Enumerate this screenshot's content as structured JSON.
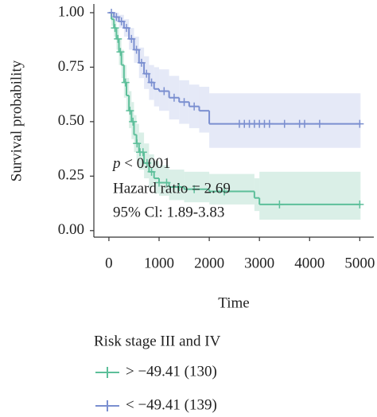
{
  "chart_data": {
    "type": "survival",
    "x_label": "Time",
    "y_label": "Survival probability",
    "xlim": [
      -300,
      5280
    ],
    "ylim": [
      -0.03,
      1.04
    ],
    "xticks": [
      0,
      1000,
      2000,
      3000,
      4000,
      5000
    ],
    "yticks": [
      {
        "value": 0,
        "label": "0.00"
      },
      {
        "value": 0.25,
        "label": "0.25"
      },
      {
        "value": 0.5,
        "label": "0.50"
      },
      {
        "value": 0.75,
        "label": "0.75"
      },
      {
        "value": 1,
        "label": "1.00"
      }
    ],
    "annotation": {
      "p_label": "p",
      "p_value": "< 0.001",
      "hazard": "Hazard ratio = 2.69",
      "ci": "95% Cl: 1.89-3.83"
    },
    "legend_title": "Risk stage III and IV",
    "series": [
      {
        "name": "> −49.41 (130)",
        "color": "#5dbf9a",
        "band_color": "#cdeadf",
        "x": [
          0,
          50,
          100,
          150,
          200,
          250,
          300,
          350,
          400,
          450,
          500,
          550,
          600,
          700,
          800,
          900,
          1000,
          1200,
          1500,
          2000,
          2900,
          3000,
          5000
        ],
        "values": [
          1,
          0.97,
          0.93,
          0.88,
          0.82,
          0.76,
          0.68,
          0.62,
          0.55,
          0.5,
          0.44,
          0.4,
          0.36,
          0.31,
          0.27,
          0.24,
          0.22,
          0.2,
          0.19,
          0.18,
          0.15,
          0.12,
          0.12
        ],
        "upper": [
          1,
          1,
          0.97,
          0.93,
          0.88,
          0.83,
          0.76,
          0.7,
          0.64,
          0.59,
          0.53,
          0.49,
          0.45,
          0.4,
          0.35,
          0.32,
          0.3,
          0.28,
          0.27,
          0.26,
          0.24,
          0.27,
          0.27
        ],
        "lower": [
          1,
          0.94,
          0.89,
          0.83,
          0.76,
          0.7,
          0.61,
          0.55,
          0.47,
          0.42,
          0.36,
          0.32,
          0.28,
          0.24,
          0.2,
          0.17,
          0.16,
          0.14,
          0.13,
          0.12,
          0.09,
          0.05,
          0.05
        ],
        "censor_x": [
          120,
          180,
          230,
          330,
          420,
          480,
          560,
          620,
          680,
          760,
          850,
          1000,
          1150,
          1400,
          1700,
          2300,
          3400,
          5000
        ],
        "censor_y": [
          0.93,
          0.88,
          0.82,
          0.68,
          0.55,
          0.5,
          0.4,
          0.36,
          0.36,
          0.31,
          0.27,
          0.22,
          0.22,
          0.2,
          0.19,
          0.18,
          0.12,
          0.12
        ]
      },
      {
        "name": "< −49.41 (139)",
        "color": "#7b8fd0",
        "band_color": "#dce1f4",
        "x": [
          0,
          100,
          200,
          300,
          400,
          500,
          600,
          700,
          800,
          900,
          1000,
          1200,
          1400,
          1600,
          1800,
          2000,
          5000
        ],
        "values": [
          1,
          0.98,
          0.96,
          0.93,
          0.88,
          0.83,
          0.77,
          0.72,
          0.68,
          0.65,
          0.64,
          0.61,
          0.59,
          0.57,
          0.55,
          0.49,
          0.49
        ],
        "upper": [
          1,
          1,
          0.99,
          0.97,
          0.93,
          0.89,
          0.84,
          0.8,
          0.76,
          0.75,
          0.74,
          0.71,
          0.69,
          0.67,
          0.66,
          0.63,
          0.63
        ],
        "lower": [
          1,
          0.96,
          0.93,
          0.89,
          0.83,
          0.77,
          0.7,
          0.65,
          0.6,
          0.57,
          0.55,
          0.51,
          0.49,
          0.47,
          0.45,
          0.38,
          0.38
        ],
        "censor_x": [
          50,
          150,
          250,
          350,
          450,
          550,
          650,
          750,
          850,
          1100,
          1300,
          1500,
          1700,
          2600,
          2700,
          2800,
          2900,
          3000,
          3100,
          3200,
          3500,
          3800,
          3900,
          4200,
          5000
        ],
        "censor_y": [
          1,
          0.98,
          0.96,
          0.93,
          0.88,
          0.83,
          0.77,
          0.72,
          0.68,
          0.64,
          0.61,
          0.59,
          0.57,
          0.49,
          0.49,
          0.49,
          0.49,
          0.49,
          0.49,
          0.49,
          0.49,
          0.49,
          0.49,
          0.49,
          0.49
        ]
      }
    ]
  }
}
